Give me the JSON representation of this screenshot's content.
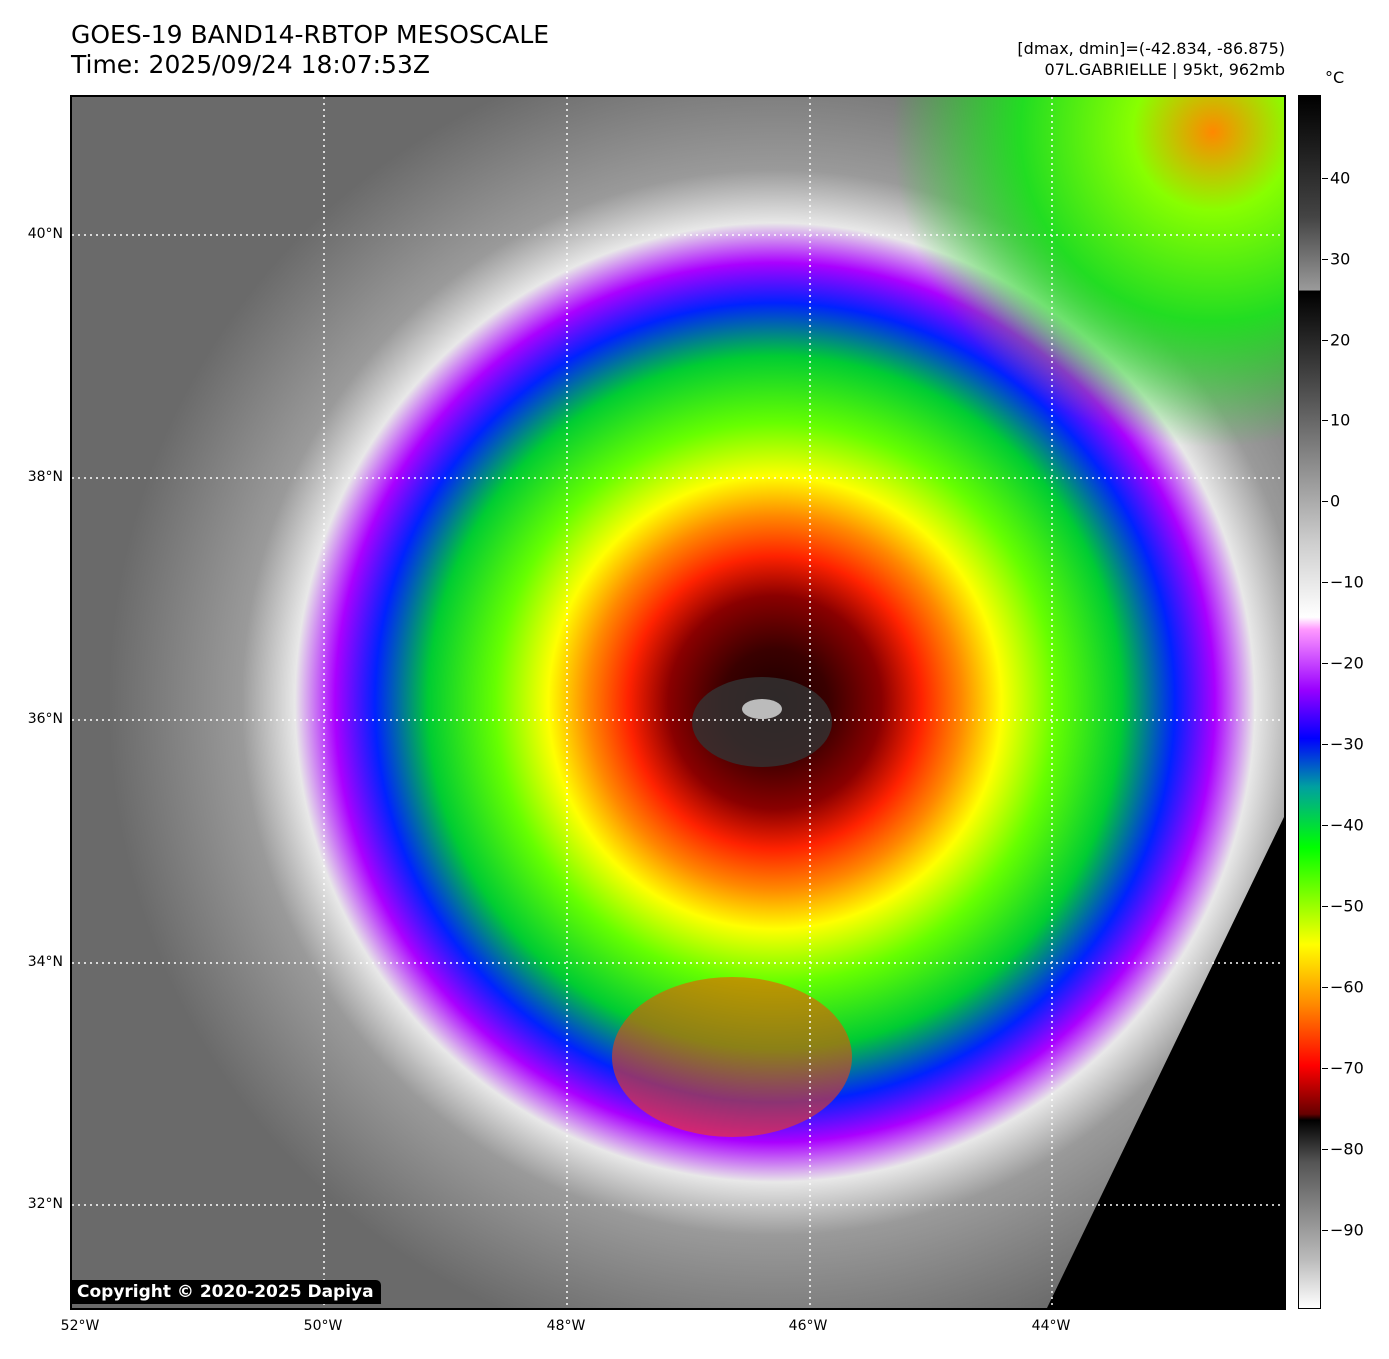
{
  "title": {
    "line1": "GOES-19 BAND14-RBTOP MESOSCALE",
    "line2": "Time: 2025/09/24 18:07:53Z"
  },
  "info": {
    "line1": "[dmax, dmin]=(-42.834, -86.875)",
    "line2": "07L.GABRIELLE | 95kt, 962mb"
  },
  "latitudes": [
    "40°N",
    "38°N",
    "36°N",
    "34°N",
    "32°N"
  ],
  "longitudes": [
    "52°W",
    "50°W",
    "48°W",
    "46°W",
    "44°W"
  ],
  "colorbar": {
    "unit": "°C",
    "ticks": [
      "40",
      "30",
      "20",
      "10",
      "0",
      "−10",
      "−20",
      "−30",
      "−40",
      "−50",
      "−60",
      "−70",
      "−80",
      "−90"
    ]
  },
  "copyright": "Copyright © 2020-2025 Dapiya"
}
